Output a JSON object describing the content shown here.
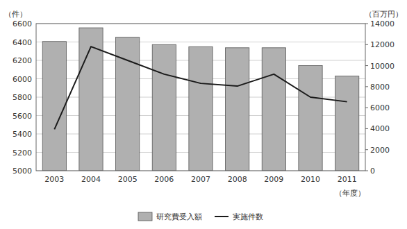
{
  "chart_data": {
    "type": "bar",
    "categories": [
      "2003",
      "2004",
      "2005",
      "2006",
      "2007",
      "2008",
      "2009",
      "2010",
      "2011"
    ],
    "series": [
      {
        "name": "研究費受入額",
        "type": "bar",
        "axis": "y2",
        "color": "#b0b0b0",
        "values": [
          12300,
          13600,
          12700,
          12000,
          11800,
          11700,
          11700,
          10000,
          9000
        ]
      },
      {
        "name": "実施件数",
        "type": "line",
        "color": "#1a1a1a",
        "values": [
          5450,
          6350,
          6200,
          6050,
          5950,
          5920,
          6050,
          5800,
          5750
        ]
      }
    ],
    "ylabel": "（件）",
    "y2label": "（百万円）",
    "xlabel": "（年度）",
    "ylim": [
      5000,
      6600
    ],
    "yticks": [
      5000,
      5200,
      5400,
      5600,
      5800,
      6000,
      6200,
      6400,
      6600
    ],
    "y2lim": [
      0,
      14000
    ],
    "y2ticks": [
      0,
      2000,
      4000,
      6000,
      8000,
      10000,
      12000,
      14000
    ],
    "grid": true,
    "legend": "bottom"
  }
}
